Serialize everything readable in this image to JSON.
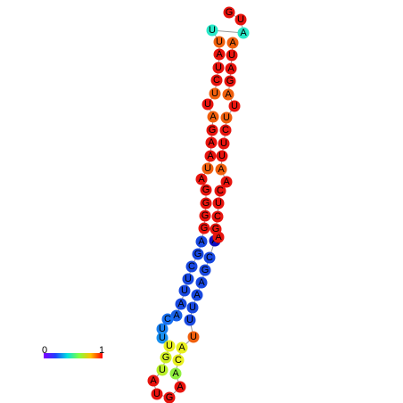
{
  "nodes": [
    {
      "label": "G",
      "color": "#e8140e"
    },
    {
      "label": "U",
      "color": "#e8140e"
    },
    {
      "label": "A",
      "color": "#28e8c8"
    },
    {
      "label": "U",
      "color": "#28e8c8"
    },
    {
      "label": "U",
      "color": "#f0600e"
    },
    {
      "label": "A",
      "color": "#e8140e"
    },
    {
      "label": "U",
      "color": "#e8140e"
    },
    {
      "label": "C",
      "color": "#e8140e"
    },
    {
      "label": "U",
      "color": "#f0600e"
    },
    {
      "label": "U",
      "color": "#e8140e"
    },
    {
      "label": "A",
      "color": "#f0600e"
    },
    {
      "label": "G",
      "color": "#e8140e"
    },
    {
      "label": "A",
      "color": "#e8140e"
    },
    {
      "label": "A",
      "color": "#e8140e"
    },
    {
      "label": "U",
      "color": "#f0600e"
    },
    {
      "label": "A",
      "color": "#e8140e"
    },
    {
      "label": "G",
      "color": "#e8140e"
    },
    {
      "label": "G",
      "color": "#e8140e"
    },
    {
      "label": "G",
      "color": "#e8140e"
    },
    {
      "label": "G",
      "color": "#e8140e"
    },
    {
      "label": "A",
      "color": "#1848e0"
    },
    {
      "label": "G",
      "color": "#1848e0"
    },
    {
      "label": "C",
      "color": "#1848e0"
    },
    {
      "label": "U",
      "color": "#1848e0"
    },
    {
      "label": "U",
      "color": "#1848e0"
    },
    {
      "label": "A",
      "color": "#1848e0"
    },
    {
      "label": "A",
      "color": "#1860e8"
    },
    {
      "label": "C",
      "color": "#1870f0"
    },
    {
      "label": "U",
      "color": "#1880f0"
    },
    {
      "label": "U",
      "color": "#1890f0"
    },
    {
      "label": "U",
      "color": "#e8f020"
    },
    {
      "label": "G",
      "color": "#d0f020"
    },
    {
      "label": "U",
      "color": "#b8f028"
    },
    {
      "label": "A",
      "color": "#e8140e"
    },
    {
      "label": "U",
      "color": "#e8140e"
    },
    {
      "label": "G",
      "color": "#e8140e"
    },
    {
      "label": "A",
      "color": "#e8140e"
    },
    {
      "label": "A",
      "color": "#90f040"
    },
    {
      "label": "C",
      "color": "#e8f020"
    },
    {
      "label": "A",
      "color": "#e8f020"
    },
    {
      "label": "U",
      "color": "#f0600e"
    },
    {
      "label": "U",
      "color": "#1848e0"
    },
    {
      "label": "U",
      "color": "#1848e0"
    },
    {
      "label": "A",
      "color": "#1848e0"
    },
    {
      "label": "A",
      "color": "#1848e0"
    },
    {
      "label": "G",
      "color": "#1848e0"
    },
    {
      "label": "C",
      "color": "#1848e0"
    },
    {
      "label": "A",
      "color": "#1010c0"
    },
    {
      "label": "A",
      "color": "#e8140e"
    },
    {
      "label": "G",
      "color": "#e8140e"
    },
    {
      "label": "C",
      "color": "#e8140e"
    },
    {
      "label": "U",
      "color": "#e8140e"
    },
    {
      "label": "C",
      "color": "#e8140e"
    },
    {
      "label": "A",
      "color": "#e8140e"
    },
    {
      "label": "A",
      "color": "#f0600e"
    },
    {
      "label": "U",
      "color": "#e8140e"
    },
    {
      "label": "U",
      "color": "#e8140e"
    },
    {
      "label": "C",
      "color": "#e8140e"
    },
    {
      "label": "U",
      "color": "#f0600e"
    },
    {
      "label": "U",
      "color": "#e8140e"
    },
    {
      "label": "A",
      "color": "#f0600e"
    },
    {
      "label": "G",
      "color": "#e8140e"
    },
    {
      "label": "A",
      "color": "#e8140e"
    },
    {
      "label": "U",
      "color": "#e8140e"
    },
    {
      "label": "A",
      "color": "#f0600e"
    }
  ],
  "scale": {
    "min_label": "0",
    "max_label": "1"
  }
}
